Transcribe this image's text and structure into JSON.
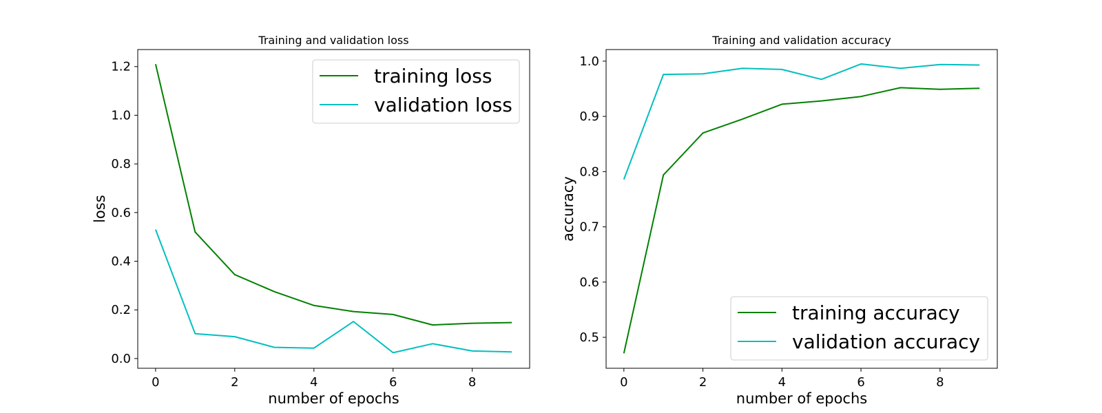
{
  "colors": {
    "training": "#008000",
    "validation": "#00bfbf"
  },
  "chart_data": [
    {
      "type": "line",
      "title": "Training and validation loss",
      "xlabel": "number of epochs",
      "ylabel": "loss",
      "xlim": [
        -0.45,
        9.45
      ],
      "ylim": [
        -0.04,
        1.27
      ],
      "xticks": [
        0,
        2,
        4,
        6,
        8
      ],
      "xtick_labels": [
        "0",
        "2",
        "4",
        "6",
        "8"
      ],
      "yticks": [
        0.0,
        0.2,
        0.4,
        0.6,
        0.8,
        1.0,
        1.2
      ],
      "ytick_labels": [
        "0.0",
        "0.2",
        "0.4",
        "0.6",
        "0.8",
        "1.0",
        "1.2"
      ],
      "grid": false,
      "legend_position": "top-right",
      "x": [
        0,
        1,
        2,
        3,
        4,
        5,
        6,
        7,
        8,
        9
      ],
      "series": [
        {
          "name": "training loss",
          "color": "#008000",
          "values": [
            1.21,
            0.52,
            0.345,
            0.275,
            0.218,
            0.193,
            0.181,
            0.138,
            0.145,
            0.148
          ]
        },
        {
          "name": "validation loss",
          "color": "#00bfbf",
          "values": [
            0.53,
            0.102,
            0.09,
            0.046,
            0.043,
            0.152,
            0.024,
            0.061,
            0.031,
            0.027
          ]
        }
      ]
    },
    {
      "type": "line",
      "title": "Training and validation accuracy",
      "xlabel": "number of epochs",
      "ylabel": "accuracy",
      "xlim": [
        -0.45,
        9.45
      ],
      "ylim": [
        0.444,
        1.021
      ],
      "xticks": [
        0,
        2,
        4,
        6,
        8
      ],
      "xtick_labels": [
        "0",
        "2",
        "4",
        "6",
        "8"
      ],
      "yticks": [
        0.5,
        0.6,
        0.7,
        0.8,
        0.9,
        1.0
      ],
      "ytick_labels": [
        "0.5",
        "0.6",
        "0.7",
        "0.8",
        "0.9",
        "1.0"
      ],
      "grid": false,
      "legend_position": "bottom-right",
      "x": [
        0,
        1,
        2,
        3,
        4,
        5,
        6,
        7,
        8,
        9
      ],
      "series": [
        {
          "name": "training accuracy",
          "color": "#008000",
          "values": [
            0.471,
            0.794,
            0.87,
            0.895,
            0.922,
            0.928,
            0.936,
            0.952,
            0.949,
            0.951
          ]
        },
        {
          "name": "validation accuracy",
          "color": "#00bfbf",
          "values": [
            0.786,
            0.976,
            0.977,
            0.987,
            0.985,
            0.967,
            0.995,
            0.987,
            0.994,
            0.993
          ]
        }
      ]
    }
  ]
}
